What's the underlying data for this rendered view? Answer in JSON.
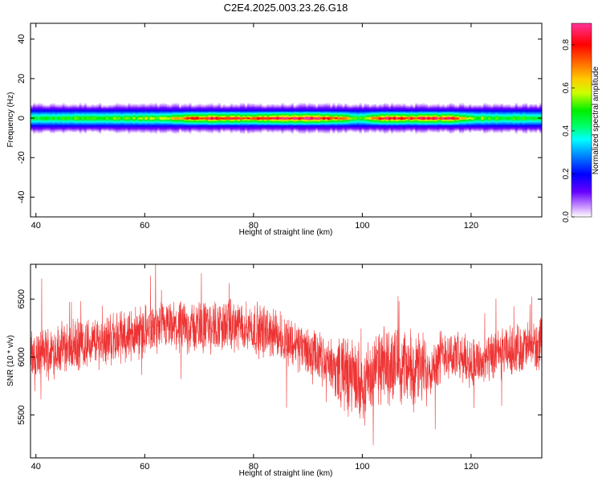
{
  "title": "C2E4.2025.003.23.26.G18",
  "chart_data": [
    {
      "type": "heatmap",
      "panel": "spectrogram",
      "xlabel": "Height of straight line (km)",
      "ylabel": "Frequency (Hz)",
      "xlim": [
        39,
        133
      ],
      "ylim": [
        -50,
        48
      ],
      "xticks": [
        40,
        60,
        80,
        100,
        120
      ],
      "yticks": [
        40,
        20,
        0,
        -20,
        -40
      ],
      "ytick_labels": [
        "40",
        "20",
        "0",
        "-20",
        "-40"
      ],
      "band_center_hz": 0,
      "band_halfwidth_hz": 4,
      "colorbar": {
        "label": "Normalized spectral amplitude",
        "range": [
          0,
          0.9
        ],
        "ticks": [
          0.0,
          0.2,
          0.4,
          0.6,
          0.8
        ],
        "tick_labels": [
          "0.0",
          "0.2",
          "0.4",
          "0.6",
          "0.8"
        ]
      },
      "peak_amplitude_profile": {
        "height_km": [
          39,
          45,
          50,
          55,
          60,
          65,
          68,
          72,
          76,
          80,
          84,
          88,
          92,
          96,
          99,
          101,
          104,
          108,
          112,
          116,
          120,
          125,
          130,
          133
        ],
        "amplitude": [
          0.45,
          0.48,
          0.5,
          0.52,
          0.55,
          0.62,
          0.75,
          0.82,
          0.8,
          0.76,
          0.84,
          0.88,
          0.86,
          0.7,
          0.5,
          0.6,
          0.85,
          0.78,
          0.8,
          0.82,
          0.55,
          0.5,
          0.48,
          0.45
        ]
      }
    },
    {
      "type": "line",
      "panel": "snr",
      "xlabel": "Height of straight line (km)",
      "ylabel": "SNR (10 * v/v)",
      "xlim": [
        39,
        133
      ],
      "ylim": [
        5130,
        6800
      ],
      "xticks": [
        40,
        60,
        80,
        100,
        120
      ],
      "yticks": [
        6500,
        6000,
        5500
      ],
      "color": "#ee3333",
      "trend": {
        "height_km": [
          39,
          45,
          50,
          55,
          60,
          65,
          70,
          75,
          80,
          85,
          90,
          95,
          100,
          103,
          106,
          110,
          113,
          115,
          118,
          122,
          126,
          130,
          133
        ],
        "snr": [
          6000,
          6080,
          6120,
          6170,
          6230,
          6250,
          6260,
          6270,
          6250,
          6180,
          6050,
          5900,
          5780,
          5900,
          5950,
          5880,
          5920,
          6050,
          5980,
          5950,
          6030,
          6080,
          6100
        ]
      }
    }
  ]
}
